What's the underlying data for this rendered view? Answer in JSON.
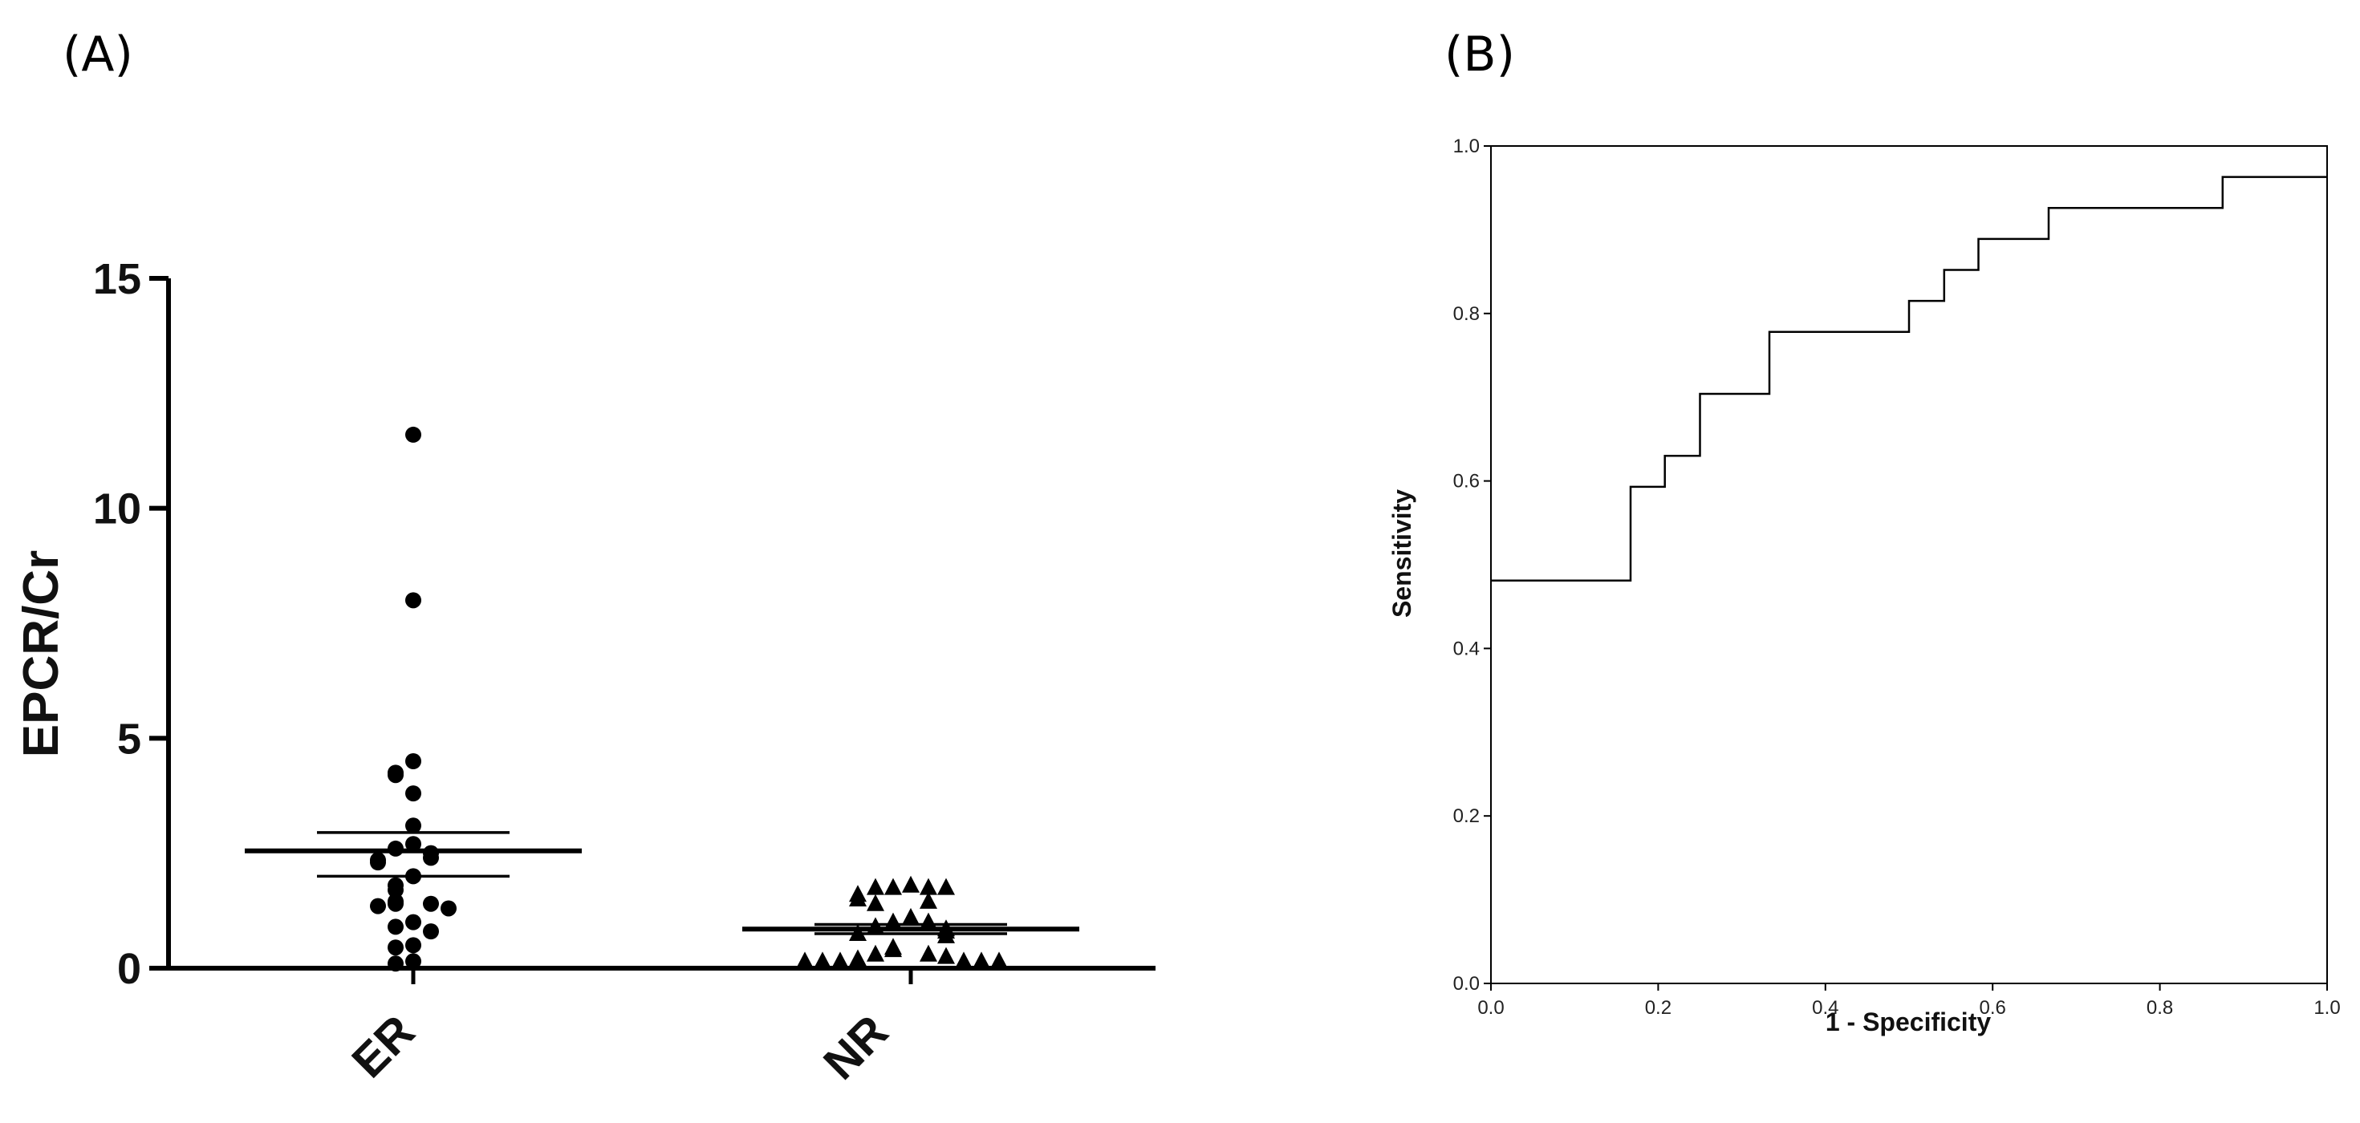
{
  "panel_labels": {
    "a": "(A)",
    "b": "(B)"
  },
  "chart_data": [
    {
      "type": "scatter",
      "panel": "(A)",
      "title": "",
      "xlabel": "",
      "ylabel": "EPCR/Cr",
      "categories": [
        "ER",
        "NR"
      ],
      "ylim": [
        0,
        15
      ],
      "yticks": [
        0,
        5,
        10,
        15
      ],
      "grid": false,
      "series": [
        {
          "category": "ER",
          "marker": "circle",
          "values": [
            11.6,
            8.0,
            4.5,
            4.25,
            4.2,
            3.8,
            3.1,
            2.7,
            2.6,
            2.5,
            2.4,
            2.35,
            2.3,
            2.0,
            1.8,
            1.7,
            1.45,
            1.4,
            1.4,
            1.35,
            1.3,
            1.0,
            0.9,
            0.8,
            0.5,
            0.45,
            0.15,
            0.1
          ],
          "mean": 2.55,
          "sem_upper": 2.95,
          "sem_lower": 2.0
        },
        {
          "category": "NR",
          "marker": "triangle",
          "values": [
            1.8,
            1.75,
            1.75,
            1.75,
            1.75,
            1.6,
            1.5,
            1.45,
            1.4,
            1.1,
            1.0,
            1.0,
            0.9,
            0.85,
            0.8,
            0.75,
            0.7,
            0.45,
            0.4,
            0.3,
            0.3,
            0.25,
            0.2,
            0.15,
            0.15,
            0.15,
            0.15,
            0.15,
            0.15,
            0.15
          ],
          "mean": 0.85,
          "sem_upper": 0.95,
          "sem_lower": 0.75
        }
      ]
    },
    {
      "type": "line",
      "panel": "(B)",
      "title": "",
      "xlabel": "1 - Specificity",
      "ylabel": "Sensitivity",
      "xlim": [
        0,
        1
      ],
      "ylim": [
        0,
        1
      ],
      "xticks": [
        "0.0",
        "0.2",
        "0.4",
        "0.6",
        "0.8",
        "1.0"
      ],
      "yticks": [
        "0.0",
        "0.2",
        "0.4",
        "0.6",
        "0.8",
        "1.0"
      ],
      "grid": false,
      "line_style": "step",
      "x": [
        0,
        0.167,
        0.167,
        0.208,
        0.208,
        0.25,
        0.25,
        0.333,
        0.333,
        0.5,
        0.5,
        0.542,
        0.542,
        0.583,
        0.583,
        0.667,
        0.667,
        0.875,
        0.875,
        1.0
      ],
      "y": [
        0.481,
        0.481,
        0.593,
        0.593,
        0.63,
        0.63,
        0.704,
        0.704,
        0.778,
        0.778,
        0.815,
        0.815,
        0.852,
        0.852,
        0.889,
        0.889,
        0.926,
        0.926,
        0.963,
        0.963
      ]
    }
  ]
}
